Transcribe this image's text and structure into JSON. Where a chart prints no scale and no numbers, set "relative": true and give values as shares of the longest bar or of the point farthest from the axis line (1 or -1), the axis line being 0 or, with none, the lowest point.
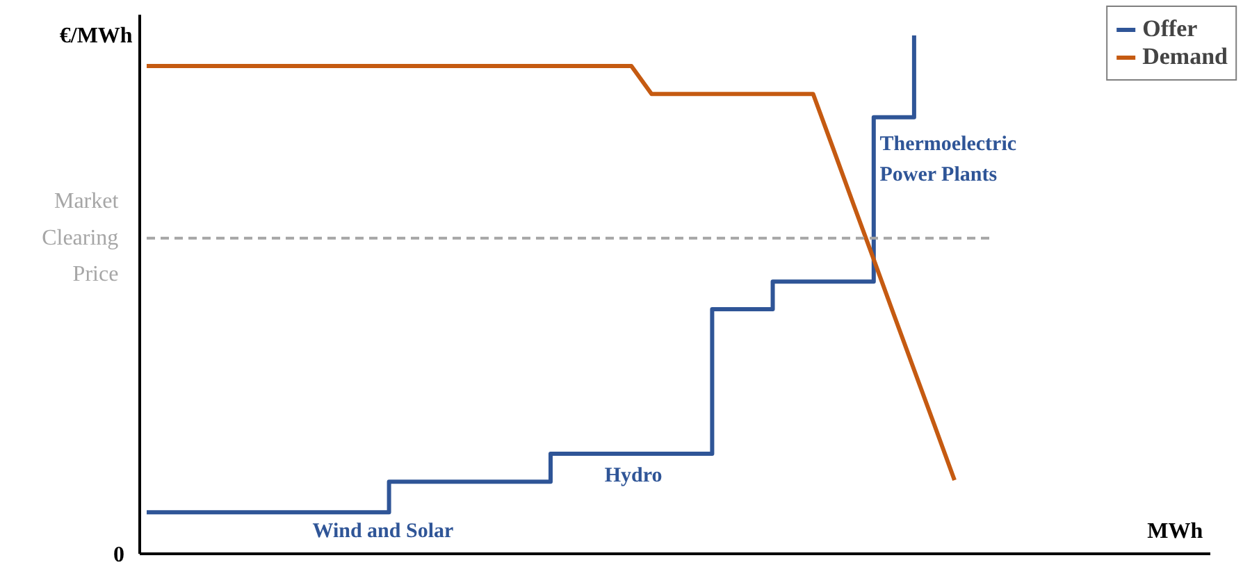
{
  "chart_data": {
    "type": "line",
    "relative": true,
    "ylabel": "€/MWh",
    "categories": [
      null,
      null,
      null,
      null,
      null,
      null,
      null,
      null,
      null,
      null,
      null,
      null,
      null,
      null,
      null,
      null,
      null,
      null,
      null,
      null,
      null,
      null,
      null,
      null,
      null,
      null,
      null,
      null,
      null,
      null,
      null,
      null,
      null,
      null,
      null,
      null,
      null,
      null,
      null,
      null,
      null
    ],
    "series": [
      {
        "name": "Offer",
        "type": "step",
        "color": "#2f5597",
        "values": [
          0.08,
          0.08,
          0.08,
          0.08,
          0.08,
          0.08,
          0.08,
          0.08,
          0.08,
          0.08,
          0.08,
          0.08,
          0.139,
          0.139,
          0.139,
          0.139,
          0.139,
          0.139,
          0.139,
          0.139,
          0.193,
          0.193,
          0.193,
          0.193,
          0.193,
          0.193,
          0.193,
          0.193,
          0.472,
          0.472,
          0.472,
          0.525,
          0.525,
          0.525,
          0.525,
          0.525,
          0.842,
          0.842,
          1.0,
          null,
          null
        ]
      },
      {
        "name": "Demand",
        "color": "#c55a11",
        "values": [
          0.941,
          0.941,
          0.941,
          0.941,
          0.941,
          0.941,
          0.941,
          0.941,
          0.941,
          0.941,
          0.941,
          0.941,
          0.941,
          0.941,
          0.941,
          0.941,
          0.941,
          0.941,
          0.941,
          0.941,
          0.941,
          0.941,
          0.941,
          0.941,
          0.941,
          0.887,
          0.887,
          0.887,
          0.887,
          0.887,
          0.887,
          0.887,
          0.887,
          0.887,
          0.781,
          0.674,
          0.568,
          0.461,
          0.355,
          0.249,
          0.142
        ]
      }
    ],
    "ref_lines": [
      {
        "axis": "y",
        "value": 0.609,
        "label": "Market Clearing Price",
        "color": "#a6a6a6",
        "line_style": "dashed"
      }
    ],
    "annotations": [
      "0",
      "Wind and Solar",
      "Hydro",
      "Thermoelectric Power Plants",
      "MWh"
    ],
    "legend": "top right",
    "grid": false
  }
}
